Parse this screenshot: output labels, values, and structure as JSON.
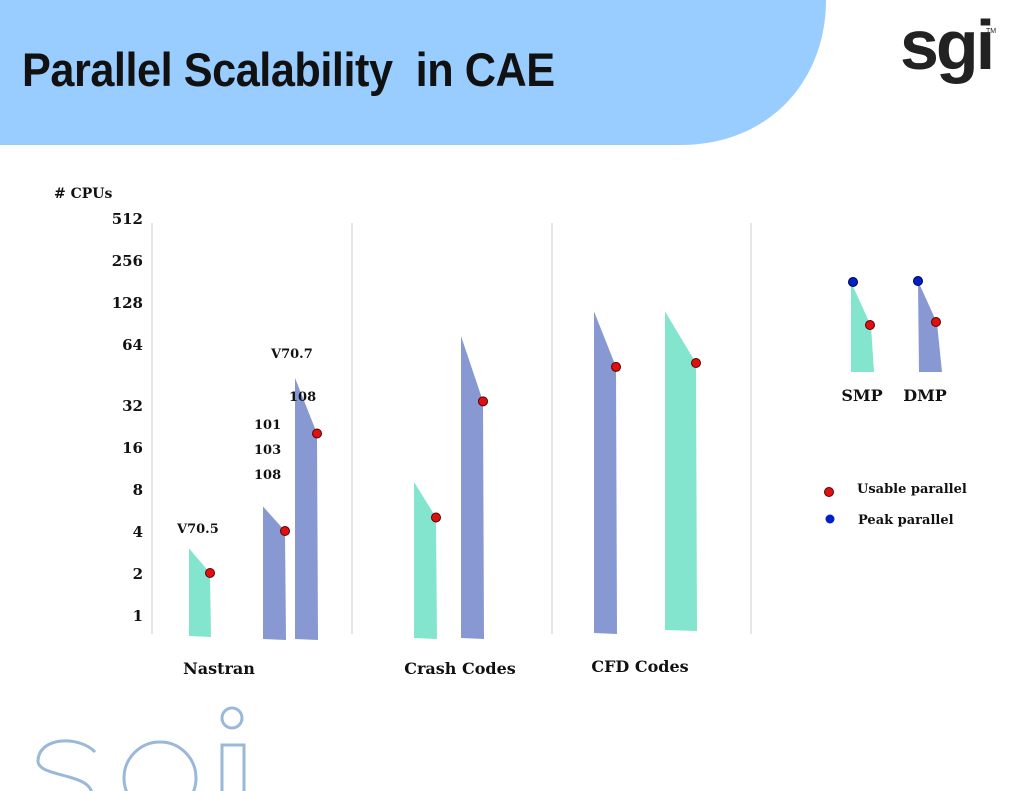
{
  "slide": {
    "title": "Parallel Scalability  in CAE",
    "logo_text": "sgi",
    "logo_tm": "TM",
    "header_color": "#99CCFF"
  },
  "chart_data": {
    "type": "range",
    "ylabel": "# CPUs",
    "y_scale": "log2",
    "y_ticks": [
      "512",
      "256",
      "128",
      "64",
      "32",
      "16",
      "8",
      "4",
      "2",
      "1"
    ],
    "ylim": [
      1,
      512
    ],
    "grid": false,
    "categories": [
      "Nastran",
      "Crash Codes",
      "CFD Codes"
    ],
    "annotations": [
      "V70.5",
      "V70.7",
      "108",
      "101",
      "103",
      "108"
    ],
    "colors": {
      "smp": "#84E5CF",
      "dmp": "#8898D2",
      "usable": "#E01010",
      "peak": "#0020CC"
    },
    "series": [
      {
        "category": "Nastran",
        "kind": "SMP",
        "peak": 3,
        "usable": 2
      },
      {
        "category": "Nastran",
        "kind": "DMP",
        "peak": 6,
        "usable": 4
      },
      {
        "category": "Nastran",
        "kind": "DMP",
        "peak": 50,
        "usable": 20
      },
      {
        "category": "Crash Codes",
        "kind": "SMP",
        "peak": 9,
        "usable": 5
      },
      {
        "category": "Crash Codes",
        "kind": "DMP",
        "peak": 100,
        "usable": 34
      },
      {
        "category": "CFD Codes",
        "kind": "DMP",
        "peak": 150,
        "usable": 60
      },
      {
        "category": "CFD Codes",
        "kind": "SMP",
        "peak": 150,
        "usable": 64
      }
    ],
    "legend": {
      "placement": "right",
      "items": [
        {
          "label": "SMP"
        },
        {
          "label": "DMP"
        },
        {
          "label": "Usable parallel"
        },
        {
          "label": "Peak parallel"
        }
      ]
    }
  }
}
